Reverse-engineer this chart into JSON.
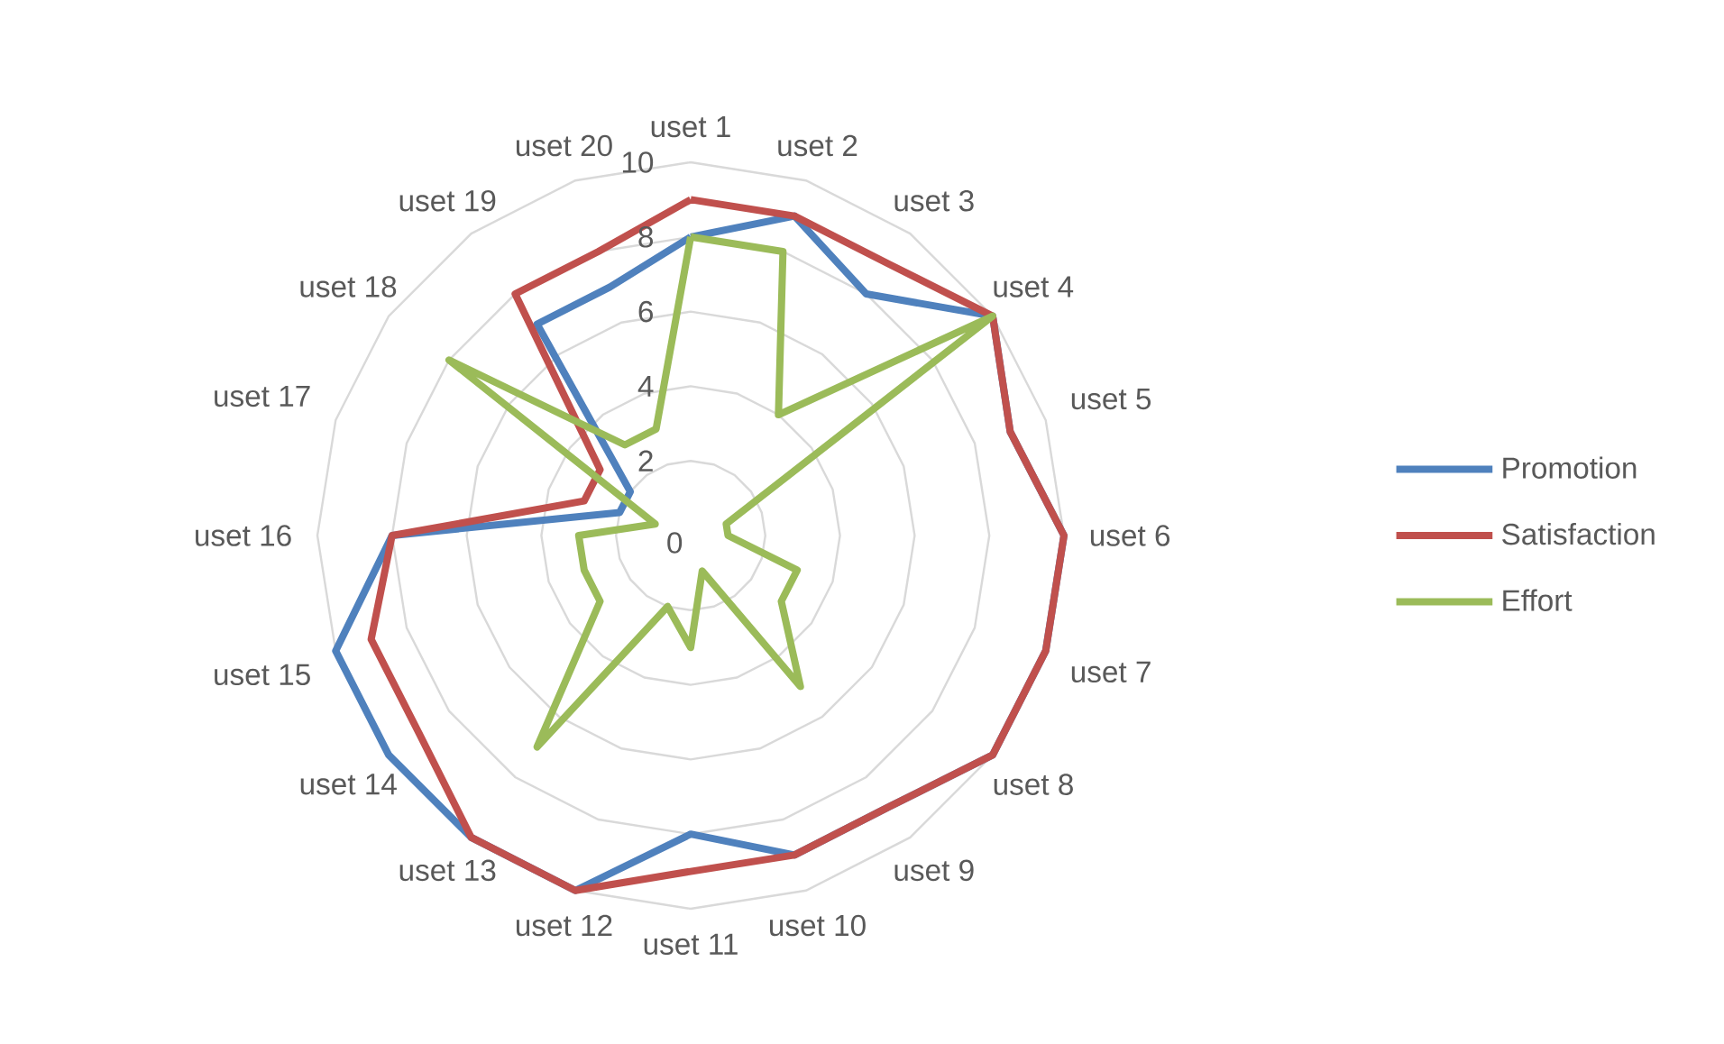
{
  "chart_data": {
    "type": "radar",
    "categories": [
      "uset 1",
      "uset 2",
      "uset 3",
      "uset 4",
      "uset 5",
      "uset 6",
      "uset 7",
      "uset 8",
      "uset 9",
      "uset 10",
      "uset 11",
      "uset 12",
      "uset 13",
      "uset 14",
      "uset 15",
      "uset 16",
      "uset 17",
      "uset 18",
      "uset 19",
      "uset 20"
    ],
    "series": [
      {
        "name": "Promotion",
        "color": "#4f81bd",
        "values": [
          8,
          9,
          8,
          10,
          9,
          10,
          10,
          10,
          9,
          9,
          8,
          10,
          10,
          10,
          10,
          8,
          2,
          2,
          7,
          7
        ]
      },
      {
        "name": "Satisfaction",
        "color": "#c0504d",
        "values": [
          9,
          9,
          9,
          10,
          9,
          10,
          10,
          10,
          9,
          9,
          9,
          10,
          10,
          9,
          9,
          8,
          3,
          3,
          8,
          8
        ]
      },
      {
        "name": "Effort",
        "color": "#9bbb59",
        "values": [
          8,
          8,
          4,
          10,
          1,
          1,
          3,
          3,
          5,
          1,
          3,
          2,
          7,
          3,
          3,
          3,
          1,
          8,
          3,
          3
        ]
      }
    ],
    "ylim": [
      0,
      10
    ],
    "yticks": [
      0,
      2,
      4,
      6,
      8,
      10
    ],
    "grid": true,
    "legend": "right",
    "marker": "none",
    "line_style": "solid"
  }
}
